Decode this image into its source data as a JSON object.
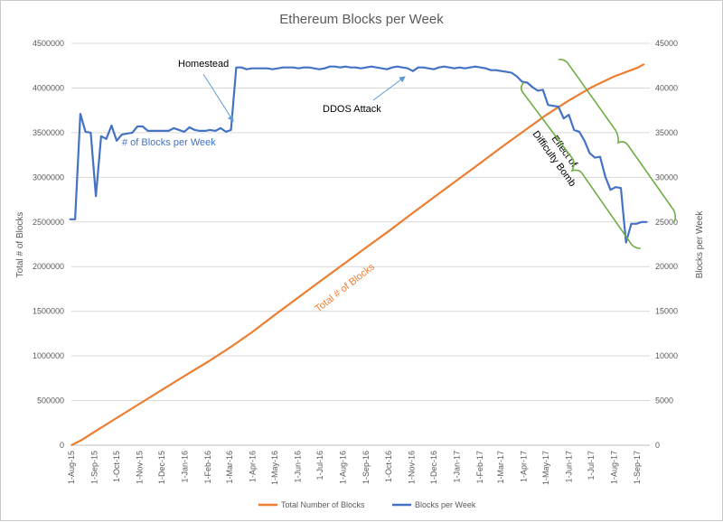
{
  "chart_data": {
    "type": "line",
    "title": "Ethereum Blocks per Week",
    "ylabel_left": "Total # of Blocks",
    "ylabel_right": "Blocks per Week",
    "ylim_left": [
      0,
      4500000
    ],
    "ylim_right": [
      0,
      45000
    ],
    "yticks_left": [
      "0",
      "500000",
      "1000000",
      "1500000",
      "2000000",
      "2500000",
      "3000000",
      "3500000",
      "4000000",
      "4500000"
    ],
    "yticks_right": [
      "0",
      "5000",
      "10000",
      "15000",
      "20000",
      "25000",
      "30000",
      "35000",
      "40000",
      "45000"
    ],
    "x_tick_labels": [
      "1-Aug-15",
      "1-Sep-15",
      "1-Oct-15",
      "1-Nov-15",
      "1-Dec-15",
      "1-Jan-16",
      "1-Feb-16",
      "1-Mar-16",
      "1-Apr-16",
      "1-May-16",
      "1-Jun-16",
      "1-Jul-16",
      "1-Aug-16",
      "1-Sep-16",
      "1-Oct-16",
      "1-Nov-16",
      "1-Dec-16",
      "1-Jan-17",
      "1-Feb-17",
      "1-Mar-17",
      "1-Apr-17",
      "1-May-17",
      "1-Jun-17",
      "1-Jul-17",
      "1-Aug-17",
      "1-Sep-17"
    ],
    "grid": true,
    "legend_position": "bottom",
    "series": [
      {
        "name": "Total Number of Blocks",
        "axis": "left",
        "color": "#ed7d31",
        "label": "Total # of Blocks",
        "x": [
          "1-Aug-15",
          "15-Aug-15",
          "1-Sep-15",
          "1-Oct-15",
          "1-Nov-15",
          "1-Dec-15",
          "1-Jan-16",
          "1-Feb-16",
          "1-Mar-16",
          "1-Apr-16",
          "1-May-16",
          "1-Jun-16",
          "1-Jul-16",
          "1-Aug-16",
          "1-Sep-16",
          "1-Oct-16",
          "1-Nov-16",
          "1-Dec-16",
          "1-Jan-17",
          "1-Feb-17",
          "1-Mar-17",
          "1-Apr-17",
          "1-May-17",
          "1-Jun-17",
          "1-Jul-17",
          "1-Aug-17",
          "1-Sep-17",
          "10-Sep-17"
        ],
        "values": [
          0,
          60000,
          150000,
          305000,
          465000,
          620000,
          780000,
          935000,
          1090000,
          1270000,
          1460000,
          1650000,
          1835000,
          2025000,
          2215000,
          2395000,
          2590000,
          2775000,
          2965000,
          3155000,
          3330000,
          3515000,
          3695000,
          3860000,
          4005000,
          4130000,
          4225000,
          4265000
        ]
      },
      {
        "name": "Blocks per Week",
        "axis": "right",
        "color": "#4472c4",
        "label": "# of Blocks per Week",
        "x": [
          "30-Jul-15",
          "6-Aug-15",
          "13-Aug-15",
          "20-Aug-15",
          "27-Aug-15",
          "3-Sep-15",
          "10-Sep-15",
          "17-Sep-15",
          "24-Sep-15",
          "1-Oct-15",
          "8-Oct-15",
          "15-Oct-15",
          "22-Oct-15",
          "29-Oct-15",
          "5-Nov-15",
          "12-Nov-15",
          "19-Nov-15",
          "26-Nov-15",
          "3-Dec-15",
          "10-Dec-15",
          "17-Dec-15",
          "24-Dec-15",
          "31-Dec-15",
          "7-Jan-16",
          "14-Jan-16",
          "21-Jan-16",
          "28-Jan-16",
          "4-Feb-16",
          "11-Feb-16",
          "18-Feb-16",
          "25-Feb-16",
          "3-Mar-16",
          "10-Mar-16",
          "17-Mar-16",
          "24-Mar-16",
          "31-Mar-16",
          "7-Apr-16",
          "14-Apr-16",
          "21-Apr-16",
          "28-Apr-16",
          "5-May-16",
          "12-May-16",
          "19-May-16",
          "26-May-16",
          "2-Jun-16",
          "9-Jun-16",
          "16-Jun-16",
          "23-Jun-16",
          "30-Jun-16",
          "7-Jul-16",
          "14-Jul-16",
          "21-Jul-16",
          "28-Jul-16",
          "4-Aug-16",
          "11-Aug-16",
          "18-Aug-16",
          "25-Aug-16",
          "1-Sep-16",
          "8-Sep-16",
          "15-Sep-16",
          "22-Sep-16",
          "29-Sep-16",
          "6-Oct-16",
          "13-Oct-16",
          "20-Oct-16",
          "27-Oct-16",
          "3-Nov-16",
          "10-Nov-16",
          "17-Nov-16",
          "24-Nov-16",
          "1-Dec-16",
          "8-Dec-16",
          "15-Dec-16",
          "22-Dec-16",
          "29-Dec-16",
          "5-Jan-17",
          "12-Jan-17",
          "19-Jan-17",
          "26-Jan-17",
          "2-Feb-17",
          "9-Feb-17",
          "16-Feb-17",
          "23-Feb-17",
          "2-Mar-17",
          "9-Mar-17",
          "16-Mar-17",
          "23-Mar-17",
          "30-Mar-17",
          "6-Apr-17",
          "13-Apr-17",
          "20-Apr-17",
          "27-Apr-17",
          "4-May-17",
          "11-May-17",
          "18-May-17",
          "25-May-17",
          "1-Jun-17",
          "8-Jun-17",
          "15-Jun-17",
          "22-Jun-17",
          "29-Jun-17",
          "6-Jul-17",
          "13-Jul-17",
          "20-Jul-17",
          "27-Jul-17",
          "3-Aug-17",
          "10-Aug-17",
          "17-Aug-17",
          "24-Aug-17",
          "31-Aug-17",
          "7-Sep-17",
          "14-Sep-17"
        ],
        "values": [
          25300,
          25300,
          37100,
          35100,
          35000,
          27900,
          34600,
          34300,
          35800,
          34100,
          34800,
          34900,
          35000,
          35700,
          35700,
          35200,
          35200,
          35200,
          35200,
          35200,
          35500,
          35300,
          35100,
          35600,
          35300,
          35200,
          35200,
          35300,
          35200,
          35500,
          35100,
          35300,
          42300,
          42300,
          42100,
          42200,
          42200,
          42200,
          42200,
          42100,
          42200,
          42300,
          42300,
          42300,
          42200,
          42300,
          42300,
          42200,
          42100,
          42200,
          42400,
          42400,
          42300,
          42400,
          42300,
          42300,
          42200,
          42300,
          42400,
          42300,
          42200,
          42100,
          42300,
          42400,
          42300,
          42200,
          41900,
          42300,
          42300,
          42200,
          42100,
          42300,
          42400,
          42300,
          42200,
          42300,
          42200,
          42300,
          42400,
          42300,
          42200,
          42000,
          42000,
          41900,
          41800,
          41700,
          41300,
          40700,
          40600,
          40100,
          39700,
          39800,
          38100,
          38000,
          37900,
          36600,
          37000,
          35300,
          35100,
          34100,
          32700,
          32200,
          32300,
          30100,
          28600,
          28900,
          28800,
          22700,
          24800,
          24800,
          25000,
          25000
        ]
      }
    ],
    "annotations": {
      "homestead": "Homestead",
      "ddos": "DDOS Attack",
      "difficulty_bomb_line1": "Effect of",
      "difficulty_bomb_line2": "Difficulty Bomb"
    }
  }
}
